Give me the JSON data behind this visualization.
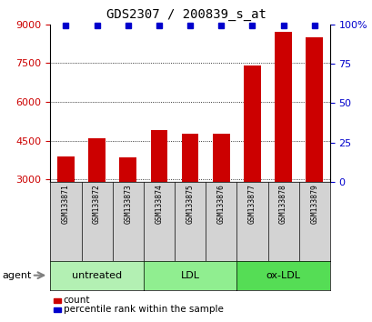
{
  "title": "GDS2307 / 200839_s_at",
  "samples": [
    "GSM133871",
    "GSM133872",
    "GSM133873",
    "GSM133874",
    "GSM133875",
    "GSM133876",
    "GSM133877",
    "GSM133878",
    "GSM133879"
  ],
  "counts": [
    3900,
    4600,
    3850,
    4900,
    4750,
    4750,
    7400,
    8700,
    8500
  ],
  "percentiles": [
    100,
    100,
    100,
    100,
    100,
    100,
    100,
    100,
    100
  ],
  "ylim_left": [
    2900,
    9000
  ],
  "ylim_right": [
    0,
    100
  ],
  "yticks_left": [
    3000,
    4500,
    6000,
    7500,
    9000
  ],
  "yticks_right": [
    0,
    25,
    50,
    75,
    100
  ],
  "groups": [
    {
      "label": "untreated",
      "indices": [
        0,
        1,
        2
      ],
      "color": "#b3f0b3"
    },
    {
      "label": "LDL",
      "indices": [
        3,
        4,
        5
      ],
      "color": "#90ee90"
    },
    {
      "label": "ox-LDL",
      "indices": [
        6,
        7,
        8
      ],
      "color": "#55dd55"
    }
  ],
  "bar_color": "#cc0000",
  "dot_color": "#0000cc",
  "bar_width": 0.55,
  "label_area_color": "#d3d3d3",
  "agent_label": "agent",
  "legend_count": "count",
  "legend_percentile": "percentile rank within the sample",
  "title_fontsize": 10,
  "tick_fontsize": 8,
  "left_tick_color": "#cc0000",
  "right_tick_color": "#0000cc",
  "dot_size": 5
}
